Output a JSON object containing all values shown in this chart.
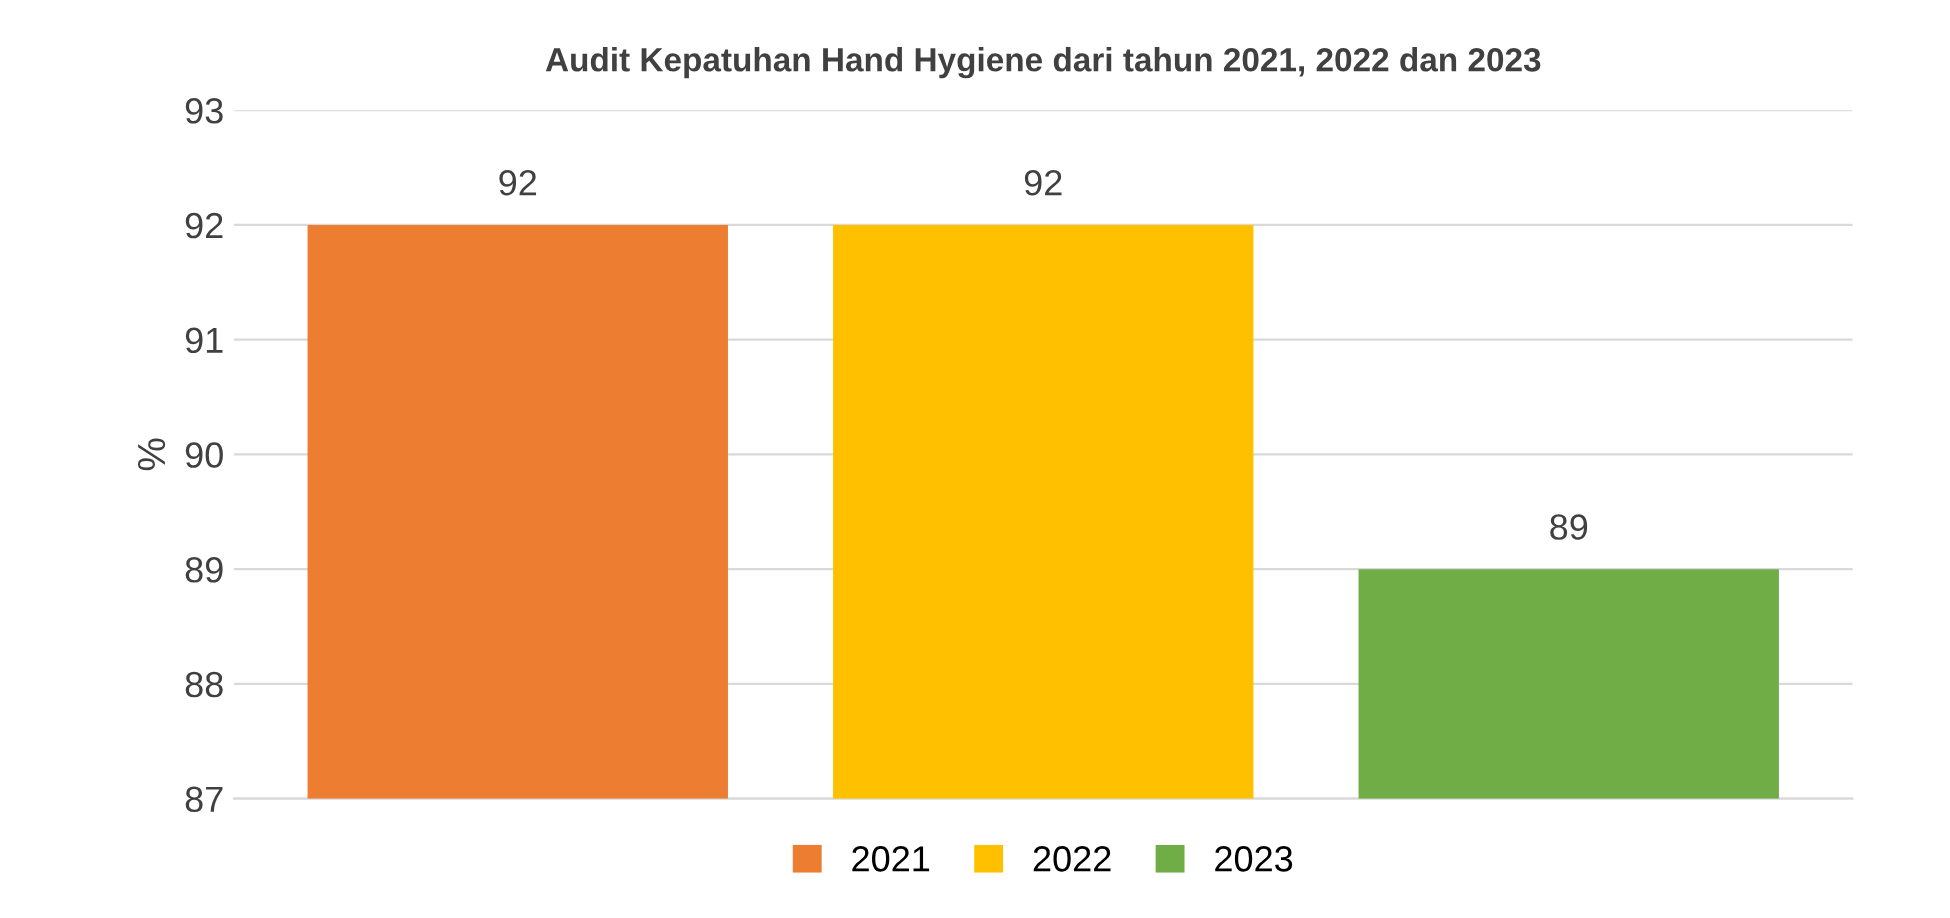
{
  "chart_data": {
    "type": "bar",
    "title": "Audit Kepatuhan Hand Hygiene dari tahun 2021, 2022 dan 2023",
    "ylabel": "%",
    "categories": [
      null
    ],
    "series": [
      {
        "name": "2021",
        "color": "#ed7d31",
        "values": [
          92
        ]
      },
      {
        "name": "2022",
        "color": "#ffc000",
        "values": [
          92
        ]
      },
      {
        "name": "2023",
        "color": "#70ad47",
        "values": [
          89
        ]
      }
    ],
    "ylim": [
      87,
      93
    ],
    "yticks": [
      87,
      88,
      89,
      90,
      91,
      92,
      93
    ],
    "grid": "y",
    "legend": "bottom",
    "data_labels": true
  }
}
